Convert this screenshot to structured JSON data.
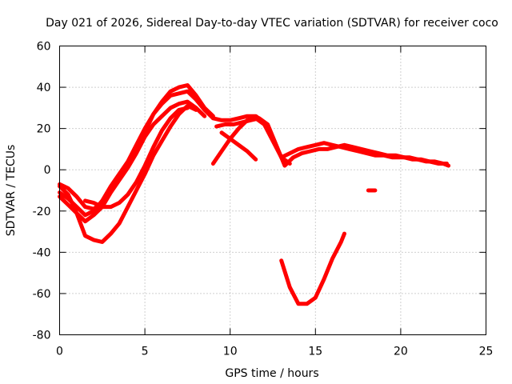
{
  "chart_data": {
    "type": "scatter",
    "title": "Day 021 of 2026, Sidereal Day-to-day VTEC variation (SDTVAR) for receiver coco",
    "xlabel": "GPS time / hours",
    "ylabel": "SDTVAR / TECUs",
    "xlim": [
      0,
      25
    ],
    "ylim": [
      -80,
      60
    ],
    "xticks": [
      0,
      5,
      10,
      15,
      20,
      25
    ],
    "yticks": [
      -80,
      -60,
      -40,
      -20,
      0,
      20,
      40,
      60
    ],
    "grid": true,
    "color": "#ff0000",
    "series": [
      {
        "name": "track-1",
        "x": [
          0.0,
          0.5,
          1.0,
          1.5,
          2.0,
          2.5,
          3.0,
          3.5,
          4.0,
          4.5,
          5.0,
          5.5,
          6.0,
          6.5,
          7.0,
          7.5,
          8.0,
          8.5,
          9.0
        ],
        "y": [
          -7,
          -9,
          -13,
          -18,
          -19,
          -16,
          -10,
          -4,
          2,
          9,
          18,
          27,
          33,
          38,
          40,
          41,
          36,
          30,
          26
        ]
      },
      {
        "name": "track-2",
        "x": [
          0.0,
          0.5,
          1.0,
          1.5,
          2.0,
          2.5,
          3.0,
          3.5,
          4.0,
          4.5,
          5.0,
          5.5,
          6.0,
          6.5,
          7.0,
          7.5,
          8.0,
          8.5,
          9.0
        ],
        "y": [
          -11,
          -14,
          -18,
          -22,
          -20,
          -15,
          -8,
          -2,
          4,
          12,
          20,
          27,
          32,
          36,
          37,
          38,
          34,
          29,
          25
        ]
      },
      {
        "name": "track-3",
        "x": [
          0.0,
          0.5,
          1.0,
          1.5,
          2.0,
          2.5,
          3.0,
          3.5,
          4.0,
          4.5,
          5.0,
          5.5,
          6.0,
          6.5,
          7.0,
          7.5,
          8.0,
          8.5
        ],
        "y": [
          -13,
          -17,
          -21,
          -25,
          -22,
          -18,
          -11,
          -5,
          1,
          8,
          16,
          22,
          26,
          30,
          32,
          33,
          30,
          26
        ]
      },
      {
        "name": "track-4",
        "x": [
          0.0,
          0.5,
          1.0,
          1.5,
          2.0,
          2.5,
          3.0,
          3.5,
          4.0,
          4.5,
          5.0,
          5.5,
          6.0,
          6.5,
          7.0,
          7.5,
          8.0
        ],
        "y": [
          -8,
          -12,
          -21,
          -32,
          -34,
          -35,
          -31,
          -26,
          -18,
          -10,
          -2,
          7,
          14,
          21,
          27,
          31,
          29
        ]
      },
      {
        "name": "track-5",
        "x": [
          1.5,
          2.0,
          2.5,
          3.0,
          3.5,
          4.0,
          4.5,
          5.0,
          5.5,
          6.0,
          6.5,
          7.0,
          7.5
        ],
        "y": [
          -15,
          -16,
          -18,
          -18,
          -16,
          -12,
          -6,
          2,
          11,
          19,
          25,
          29,
          30
        ]
      },
      {
        "name": "track-6",
        "x": [
          9.0,
          9.5,
          10.0,
          10.5,
          11.0,
          11.5,
          12.0,
          12.5,
          13.0,
          13.5,
          14.0,
          14.5,
          15.0,
          15.5,
          16.0,
          16.5,
          17.0,
          17.5,
          18.0,
          18.5,
          19.0,
          19.5,
          20.0,
          20.5,
          21.0,
          21.5,
          22.0,
          22.5,
          22.8
        ],
        "y": [
          25,
          24,
          24,
          25,
          26,
          26,
          23,
          15,
          6,
          8,
          10,
          11,
          12,
          13,
          12,
          11,
          10,
          9,
          8,
          7,
          7,
          6,
          6,
          6,
          5,
          4,
          4,
          3,
          2
        ]
      },
      {
        "name": "track-7",
        "x": [
          9.2,
          9.7,
          10.2,
          10.7,
          11.2,
          11.7,
          12.2,
          12.7,
          13.2,
          13.7,
          14.2,
          14.7,
          15.2,
          15.7,
          16.2,
          16.7,
          17.2,
          17.7,
          18.2,
          18.7,
          19.2,
          19.7,
          20.2,
          20.7,
          21.2,
          21.7,
          22.2,
          22.7
        ],
        "y": [
          21,
          22,
          22,
          23,
          24,
          25,
          22,
          12,
          2,
          6,
          8,
          9,
          10,
          10,
          11,
          12,
          11,
          10,
          9,
          8,
          7,
          7,
          6,
          5,
          5,
          4,
          3,
          3
        ]
      },
      {
        "name": "track-8",
        "x": [
          9.0,
          9.5,
          10.0,
          10.5,
          11.0,
          11.5,
          12.0,
          12.5,
          13.0,
          13.5
        ],
        "y": [
          3,
          9,
          15,
          20,
          24,
          25,
          22,
          14,
          6,
          3
        ]
      },
      {
        "name": "track-9",
        "x": [
          9.5,
          10.0,
          10.5,
          11.0,
          11.5
        ],
        "y": [
          18,
          15,
          12,
          9,
          5
        ]
      },
      {
        "name": "track-10",
        "x": [
          13.0,
          13.5,
          14.0,
          14.5,
          15.0,
          15.5,
          16.0,
          16.5,
          16.7
        ],
        "y": [
          -44,
          -57,
          -65,
          -65,
          -62,
          -53,
          -43,
          -35,
          -31
        ]
      },
      {
        "name": "track-11",
        "x": [
          18.1,
          18.3,
          18.5
        ],
        "y": [
          -10,
          -10,
          -10
        ]
      }
    ]
  }
}
